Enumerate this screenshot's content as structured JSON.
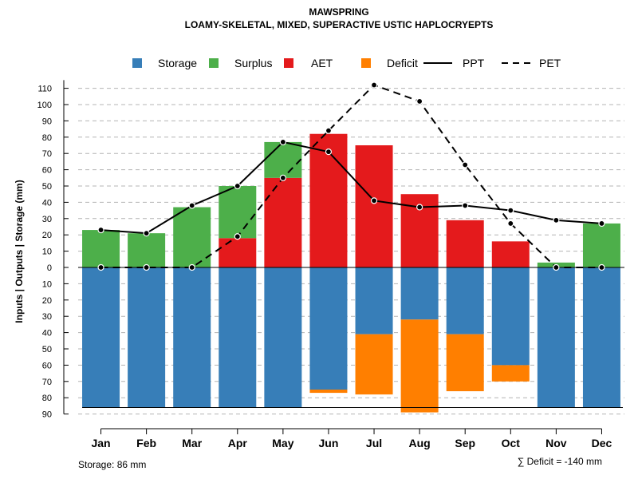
{
  "chart_data": {
    "type": "bar",
    "title": "MAWSPRING",
    "subtitle": "LOAMY-SKELETAL, MIXED, SUPERACTIVE USTIC HAPLOCRYEPTS",
    "ylabel": "Inputs | Outputs | Storage    (mm)",
    "xlabel": "",
    "categories": [
      "Jan",
      "Feb",
      "Mar",
      "Apr",
      "May",
      "Jun",
      "Jul",
      "Aug",
      "Sep",
      "Oct",
      "Nov",
      "Dec"
    ],
    "ylim": [
      -90,
      115
    ],
    "yticks_positive": [
      "110",
      "100",
      "90",
      "80",
      "70",
      "60",
      "50",
      "40",
      "30",
      "20",
      "10",
      "0"
    ],
    "yticks_negative": [
      "10",
      "20",
      "30",
      "40",
      "50",
      "60",
      "70",
      "80",
      "90"
    ],
    "grid": true,
    "legend_position": "top",
    "storage_capacity": 86,
    "series": [
      {
        "name": "Storage",
        "color": "#377EB8",
        "values": [
          86,
          86,
          86,
          86,
          86,
          75,
          41,
          32,
          41,
          60,
          86,
          86
        ]
      },
      {
        "name": "Surplus",
        "color": "#4DAF4A",
        "values": [
          23,
          21,
          37,
          32,
          22,
          0,
          0,
          0,
          0,
          0,
          3,
          27
        ]
      },
      {
        "name": "AET",
        "color": "#E41A1C",
        "values": [
          0,
          0,
          0,
          18,
          55,
          82,
          75,
          45,
          29,
          16,
          0,
          0
        ]
      },
      {
        "name": "Deficit",
        "color": "#FF7F00",
        "values": [
          0,
          0,
          0,
          0,
          0,
          2,
          37,
          57,
          35,
          10,
          0,
          0
        ]
      },
      {
        "name": "PPT",
        "color": "#000000",
        "style": "solid",
        "values": [
          23,
          21,
          38,
          50,
          77,
          71,
          41,
          37,
          38,
          35,
          29,
          27
        ]
      },
      {
        "name": "PET",
        "color": "#000000",
        "style": "dashed",
        "values": [
          0,
          0,
          0,
          19,
          55,
          84,
          112,
          102,
          63,
          27,
          0,
          0
        ]
      }
    ],
    "annotations": {
      "storage_note": "Storage: 86 mm",
      "deficit_note": "∑ Deficit = -140 mm"
    }
  }
}
